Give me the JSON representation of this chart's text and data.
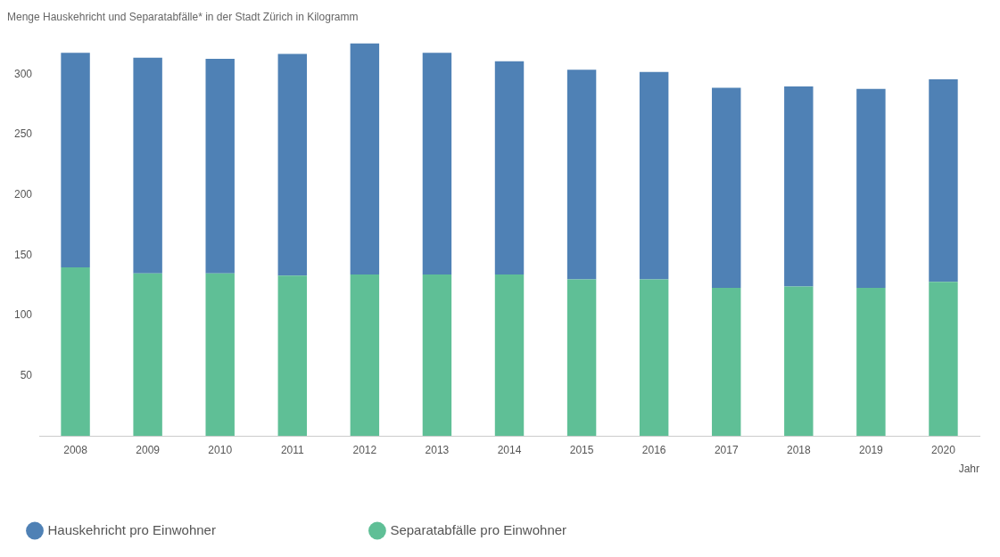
{
  "chart_data": {
    "type": "bar",
    "title": "Menge Hauskehricht und Separatabfälle* in der Stadt Zürich in Kilogramm",
    "xlabel": "Jahr",
    "categories": [
      "2008",
      "2009",
      "2010",
      "2011",
      "2012",
      "2013",
      "2014",
      "2015",
      "2016",
      "2017",
      "2018",
      "2019",
      "2020"
    ],
    "stacked": true,
    "series": [
      {
        "name": "Separatabfälle pro Einwohner",
        "color": "#5fbf96",
        "values": [
          140,
          135,
          135,
          133,
          134,
          134,
          134,
          130,
          130,
          123,
          124,
          123,
          128
        ]
      },
      {
        "name": "Hauskehricht pro Einwohner",
        "color": "#4f81b5",
        "values": [
          178,
          179,
          178,
          184,
          192,
          184,
          177,
          174,
          172,
          166,
          166,
          165,
          168
        ]
      }
    ],
    "ylim": [
      0,
      326
    ],
    "yticks": [
      50,
      100,
      150,
      200,
      250,
      300
    ],
    "grid": false,
    "legend": "bottom left"
  }
}
